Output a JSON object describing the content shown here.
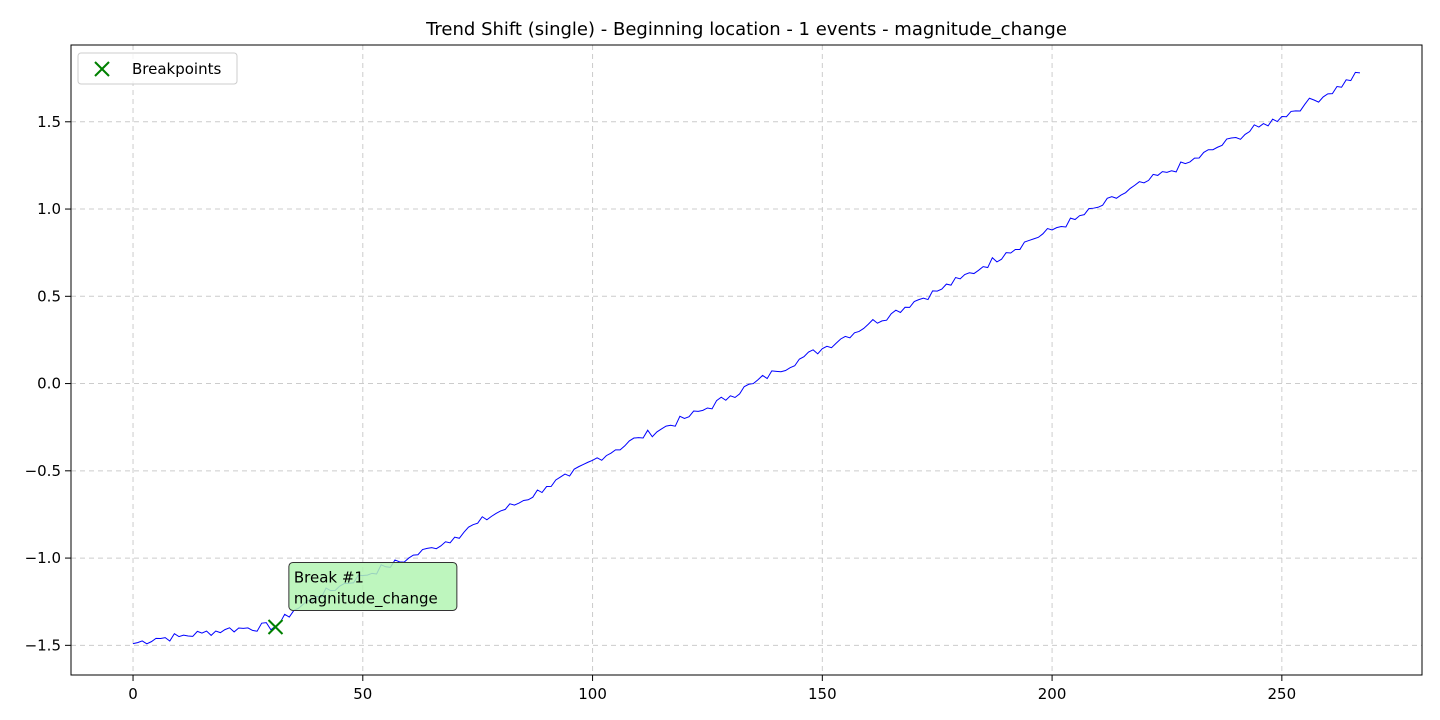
{
  "chart_data": {
    "type": "line",
    "title": "Trend Shift (single) - Beginning location - 1 events - magnitude_change",
    "xlabel": "",
    "ylabel": "",
    "xlim": [
      -13.5,
      280.5
    ],
    "ylim": [
      -1.67,
      1.94
    ],
    "xticks": [
      0,
      50,
      100,
      150,
      200,
      250
    ],
    "yticks": [
      -1.5,
      -1.0,
      -0.5,
      0.0,
      0.5,
      1.0,
      1.5
    ],
    "xtick_labels": [
      "0",
      "50",
      "100",
      "150",
      "200",
      "250"
    ],
    "ytick_labels": [
      "−1.5",
      "−1.0",
      "−0.5",
      "0.0",
      "0.5",
      "1.0",
      "1.5"
    ],
    "grid": true,
    "legend": {
      "placement": "top-left",
      "entries": [
        "Breakpoints"
      ]
    },
    "series": [
      {
        "type": "line",
        "color": "#0000ff",
        "anchors": [
          [
            0,
            -1.49
          ],
          [
            5,
            -1.46
          ],
          [
            10,
            -1.45
          ],
          [
            15,
            -1.43
          ],
          [
            20,
            -1.41
          ],
          [
            25,
            -1.4
          ],
          [
            31,
            -1.39
          ],
          [
            35,
            -1.3
          ],
          [
            40,
            -1.22
          ],
          [
            45,
            -1.16
          ],
          [
            50,
            -1.1
          ],
          [
            55,
            -1.05
          ],
          [
            60,
            -1.0
          ],
          [
            65,
            -0.94
          ],
          [
            70,
            -0.88
          ],
          [
            75,
            -0.8
          ],
          [
            80,
            -0.73
          ],
          [
            85,
            -0.67
          ],
          [
            90,
            -0.59
          ],
          [
            95,
            -0.53
          ],
          [
            100,
            -0.44
          ],
          [
            105,
            -0.38
          ],
          [
            110,
            -0.31
          ],
          [
            115,
            -0.26
          ],
          [
            120,
            -0.2
          ],
          [
            125,
            -0.14
          ],
          [
            130,
            -0.07
          ],
          [
            135,
            0.0
          ],
          [
            140,
            0.07
          ],
          [
            145,
            0.14
          ],
          [
            150,
            0.2
          ],
          [
            155,
            0.27
          ],
          [
            160,
            0.34
          ],
          [
            165,
            0.4
          ],
          [
            170,
            0.47
          ],
          [
            175,
            0.53
          ],
          [
            180,
            0.6
          ],
          [
            185,
            0.67
          ],
          [
            190,
            0.75
          ],
          [
            195,
            0.82
          ],
          [
            200,
            0.88
          ],
          [
            205,
            0.94
          ],
          [
            210,
            1.01
          ],
          [
            215,
            1.08
          ],
          [
            220,
            1.15
          ],
          [
            225,
            1.21
          ],
          [
            230,
            1.27
          ],
          [
            235,
            1.34
          ],
          [
            240,
            1.41
          ],
          [
            245,
            1.47
          ],
          [
            250,
            1.53
          ],
          [
            255,
            1.6
          ],
          [
            260,
            1.66
          ],
          [
            267,
            1.78
          ]
        ],
        "noise_amplitude": 0.025
      }
    ],
    "breakpoints": [
      {
        "x": 31,
        "y": -1.395,
        "color": "#008000",
        "marker": "x"
      }
    ],
    "annotations": [
      {
        "x": 35,
        "y": -1.26,
        "lines": [
          "Break #1",
          "magnitude_change"
        ],
        "fill": "#b3f5b3",
        "edge": "#333333"
      }
    ]
  }
}
